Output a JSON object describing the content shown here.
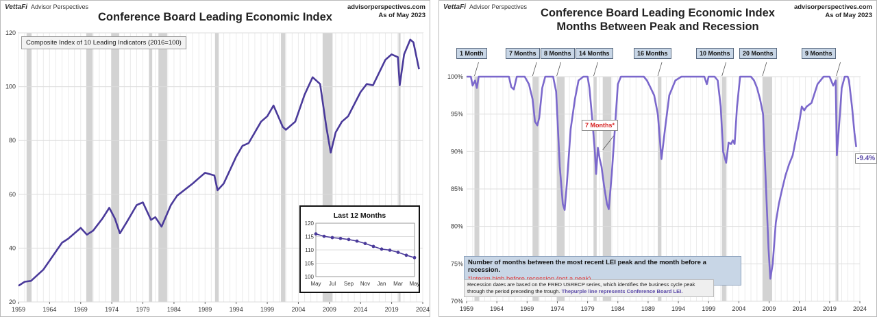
{
  "left": {
    "brand": {
      "name": "VettaFi",
      "sub": "Advisor Perspectives"
    },
    "site": {
      "url": "advisorperspectives.com",
      "asof": "As of May 2023"
    },
    "title": "Conference Board Leading Economic Index",
    "legend": "Composite Index of 10 Leading Indicators (2016=100)",
    "inset_title": "Last 12 Months"
  },
  "right": {
    "brand": {
      "name": "VettaFi",
      "sub": "Advisor Perspectives"
    },
    "site": {
      "url": "advisorperspectives.com",
      "asof": "As of May 2023"
    },
    "title1": "Conference Board Leading Economic Index",
    "title2": "Months Between Peak and Recession",
    "callouts": [
      "1 Month",
      "7 Months",
      "8 Months",
      "14 Months",
      "16 Months",
      "10 Months",
      "20 Months",
      "9 Months"
    ],
    "interim_callout": "7 Months*",
    "end_label": "-9.4%",
    "note_bold": "Number of months between the most recent LEI peak and the month before a recession.",
    "note_red": "*Interim high before recession (not a peak)",
    "note_small": "Recession dates are based on the FRED USRECP series, which identifies the business cycle peak through the period preceding the trough.",
    "note_purple": "Thepurple line represents Conference Board LEI."
  },
  "colors": {
    "line": "#4a3a9a",
    "line_light": "#7b68cc",
    "recession": "#d3d3d3",
    "callout_bg": "#c8d6e6",
    "accent_red": "#d62020"
  },
  "chart_data": [
    {
      "type": "line",
      "title": "Conference Board Leading Economic Index",
      "series": [
        {
          "name": "Composite Index of 10 Leading Indicators (2016=100)",
          "points": [
            [
              1959,
              26
            ],
            [
              1960,
              27.5
            ],
            [
              1961,
              27.8
            ],
            [
              1963,
              32
            ],
            [
              1966,
              42
            ],
            [
              1967,
              43.5
            ],
            [
              1969,
              47.5
            ],
            [
              1970,
              45
            ],
            [
              1971,
              46.5
            ],
            [
              1972.5,
              51
            ],
            [
              1973.6,
              55
            ],
            [
              1974.5,
              51
            ],
            [
              1975.3,
              45.5
            ],
            [
              1976.5,
              50
            ],
            [
              1978,
              56
            ],
            [
              1979,
              57
            ],
            [
              1980.3,
              50.5
            ],
            [
              1981,
              51.5
            ],
            [
              1982,
              48
            ],
            [
              1983.5,
              56
            ],
            [
              1984.5,
              59.5
            ],
            [
              1987,
              64
            ],
            [
              1988,
              66
            ],
            [
              1989,
              68
            ],
            [
              1990.5,
              67
            ],
            [
              1991,
              61.5
            ],
            [
              1992,
              64
            ],
            [
              1994,
              74
            ],
            [
              1995,
              78
            ],
            [
              1996,
              79
            ],
            [
              1998,
              87
            ],
            [
              1999,
              89
            ],
            [
              2000,
              93
            ],
            [
              2001.5,
              85
            ],
            [
              2002,
              84
            ],
            [
              2003.5,
              87
            ],
            [
              2005,
              97
            ],
            [
              2006.3,
              103.5
            ],
            [
              2007.5,
              101
            ],
            [
              2008.5,
              85
            ],
            [
              2009.2,
              75.5
            ],
            [
              2010,
              83
            ],
            [
              2011,
              87
            ],
            [
              2012,
              89
            ],
            [
              2014,
              98
            ],
            [
              2015,
              101
            ],
            [
              2016,
              100.5
            ],
            [
              2018,
              110
            ],
            [
              2019,
              112
            ],
            [
              2020,
              111
            ],
            [
              2020.3,
              100.5
            ],
            [
              2021,
              112
            ],
            [
              2022,
              117.5
            ],
            [
              2022.5,
              116.5
            ],
            [
              2023.4,
              106.5
            ]
          ]
        }
      ],
      "xlim": [
        1959,
        2024
      ],
      "ylim": [
        20,
        120
      ],
      "xticks": [
        "1959",
        "1964",
        "1969",
        "1974",
        "1979",
        "1984",
        "1989",
        "1994",
        "1999",
        "2004",
        "2009",
        "2014",
        "2019",
        "2024"
      ],
      "yticks": [
        20,
        40,
        60,
        80,
        100,
        120
      ],
      "recessions": [
        [
          1960.3,
          1961.1
        ],
        [
          1969.9,
          1970.9
        ],
        [
          1973.9,
          1975.2
        ],
        [
          1980.0,
          1980.5
        ],
        [
          1981.5,
          1982.9
        ],
        [
          1990.6,
          1991.2
        ],
        [
          2001.2,
          2001.9
        ],
        [
          2007.9,
          2009.5
        ],
        [
          2020.1,
          2020.3
        ]
      ],
      "grid": true
    },
    {
      "type": "line",
      "title": "Last 12 Months",
      "categories": [
        "May",
        "Jun",
        "Jul",
        "Aug",
        "Sep",
        "Oct",
        "Nov",
        "Dec",
        "Jan",
        "Feb",
        "Mar",
        "Apr",
        "May"
      ],
      "xticks": [
        "May",
        "Jul",
        "Sep",
        "Nov",
        "Jan",
        "Mar",
        "May"
      ],
      "values": [
        116,
        115.1,
        114.6,
        114.3,
        113.9,
        113.3,
        112.4,
        111.3,
        110.3,
        109.9,
        109.1,
        108,
        107.1
      ],
      "ylim": [
        100,
        120
      ],
      "yticks": [
        100,
        105,
        110,
        115,
        120
      ],
      "grid": true
    },
    {
      "type": "line",
      "title": "Conference Board Leading Economic Index Months Between Peak and Recession",
      "series": [
        {
          "name": "Conference Board LEI",
          "points": [
            [
              1959,
              100
            ],
            [
              1959.7,
              100
            ],
            [
              1960,
              98.8
            ],
            [
              1960.4,
              99.5
            ],
            [
              1960.7,
              98.5
            ],
            [
              1961,
              100
            ],
            [
              1965,
              100
            ],
            [
              1966,
              100
            ],
            [
              1966.4,
              98.6
            ],
            [
              1966.8,
              98.3
            ],
            [
              1967.3,
              100
            ],
            [
              1968,
              100
            ],
            [
              1968.6,
              100
            ],
            [
              1969.3,
              99
            ],
            [
              1969.9,
              97
            ],
            [
              1970.3,
              94
            ],
            [
              1970.7,
              93.5
            ],
            [
              1971,
              94.5
            ],
            [
              1971.5,
              98.5
            ],
            [
              1972,
              100
            ],
            [
              1973.3,
              100
            ],
            [
              1973.8,
              98
            ],
            [
              1974.4,
              88
            ],
            [
              1974.9,
              83
            ],
            [
              1975.2,
              82.2
            ],
            [
              1975.6,
              86
            ],
            [
              1976.2,
              93
            ],
            [
              1976.9,
              97
            ],
            [
              1977.5,
              99.5
            ],
            [
              1978.3,
              100
            ],
            [
              1979,
              100
            ],
            [
              1979.3,
              98.5
            ],
            [
              1979.8,
              94
            ],
            [
              1980.2,
              90
            ],
            [
              1980.4,
              87
            ],
            [
              1980.7,
              90.5
            ],
            [
              1981,
              89
            ],
            [
              1981.3,
              88
            ],
            [
              1981.7,
              85.5
            ],
            [
              1982.2,
              83
            ],
            [
              1982.5,
              82.3
            ],
            [
              1983,
              87
            ],
            [
              1983.5,
              93
            ],
            [
              1984,
              99
            ],
            [
              1984.5,
              100
            ],
            [
              1988.3,
              100
            ],
            [
              1988.8,
              99.5
            ],
            [
              1989.3,
              98.7
            ],
            [
              1990,
              97.5
            ],
            [
              1990.6,
              95
            ],
            [
              1991.2,
              89
            ],
            [
              1991.8,
              93
            ],
            [
              1992.5,
              97.5
            ],
            [
              1993.5,
              99.5
            ],
            [
              1994.5,
              100
            ],
            [
              1998.3,
              100
            ],
            [
              1998.7,
              99
            ],
            [
              1999,
              100
            ],
            [
              2000,
              100
            ],
            [
              2000.5,
              99.5
            ],
            [
              2001,
              96
            ],
            [
              2001.4,
              90
            ],
            [
              2001.9,
              88.5
            ],
            [
              2002.3,
              91.2
            ],
            [
              2002.7,
              91
            ],
            [
              2003,
              91.5
            ],
            [
              2003.3,
              91
            ],
            [
              2003.7,
              96
            ],
            [
              2004.2,
              100
            ],
            [
              2006,
              100
            ],
            [
              2006.5,
              99.5
            ],
            [
              2007,
              98.5
            ],
            [
              2007.5,
              97
            ],
            [
              2008,
              95
            ],
            [
              2008.5,
              85
            ],
            [
              2008.9,
              77
            ],
            [
              2009.2,
              73
            ],
            [
              2009.6,
              75
            ],
            [
              2010.1,
              80.5
            ],
            [
              2010.6,
              83
            ],
            [
              2011.1,
              84.8
            ],
            [
              2011.7,
              86.8
            ],
            [
              2012.3,
              88.3
            ],
            [
              2012.9,
              89.5
            ],
            [
              2013.5,
              92
            ],
            [
              2014,
              94
            ],
            [
              2014.4,
              96
            ],
            [
              2014.8,
              95.5
            ],
            [
              2015.2,
              96
            ],
            [
              2016,
              96.5
            ],
            [
              2017,
              99
            ],
            [
              2018,
              100
            ],
            [
              2019,
              100
            ],
            [
              2019.6,
              98.8
            ],
            [
              2020,
              99.5
            ],
            [
              2020.2,
              89.5
            ],
            [
              2020.7,
              95
            ],
            [
              2021,
              98.5
            ],
            [
              2021.5,
              100
            ],
            [
              2022,
              100
            ],
            [
              2022.2,
              99.5
            ],
            [
              2022.7,
              96
            ],
            [
              2023.1,
              92.5
            ],
            [
              2023.4,
              90.6
            ]
          ]
        }
      ],
      "xlim": [
        1959,
        2024
      ],
      "ylim": [
        70,
        100
      ],
      "xticks": [
        "1959",
        "1964",
        "1969",
        "1974",
        "1979",
        "1984",
        "1989",
        "1994",
        "1999",
        "2004",
        "2009",
        "2014",
        "2019",
        "2024"
      ],
      "yticks": [
        "70%",
        "75%",
        "80%",
        "85%",
        "90%",
        "95%",
        "100%"
      ],
      "recessions": [
        [
          1960.3,
          1961.1
        ],
        [
          1969.9,
          1970.9
        ],
        [
          1973.9,
          1975.2
        ],
        [
          1980.0,
          1980.5
        ],
        [
          1981.5,
          1982.9
        ],
        [
          1990.6,
          1991.2
        ],
        [
          2001.2,
          2001.9
        ],
        [
          2007.9,
          2009.5
        ],
        [
          2020.1,
          2020.3
        ]
      ],
      "annotations": [
        [
          "1 Month",
          1960.3
        ],
        [
          "7 Months",
          1969.9
        ],
        [
          "8 Months",
          1973.9
        ],
        [
          "14 Months",
          1980.0
        ],
        [
          "16 Months",
          1990.6
        ],
        [
          "10 Months",
          2001.2
        ],
        [
          "20 Months",
          2007.9
        ],
        [
          "9 Months",
          2020.1
        ],
        [
          "7 Months*",
          1981.5
        ]
      ],
      "end_value": "-9.4%",
      "grid": true
    }
  ]
}
